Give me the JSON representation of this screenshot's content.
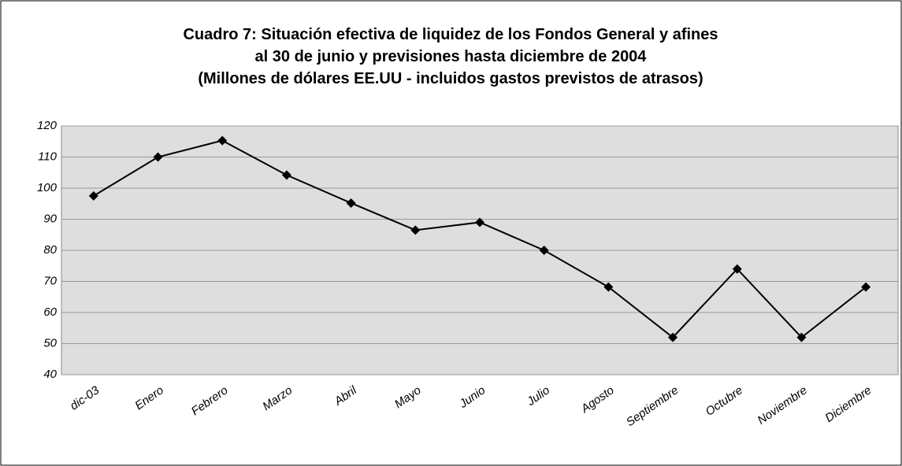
{
  "chart_data": {
    "type": "line",
    "title": [
      "Cuadro 7: Situación efectiva de liquidez de los Fondos General y afines",
      "al 30 de junio y previsiones hasta diciembre de 2004",
      "(Millones de dólares EE.UU - incluidos gastos previstos de atrasos)"
    ],
    "categories": [
      "dic-03",
      "Enero",
      "Febrero",
      "Marzo",
      "Abril",
      "Mayo",
      "Junio",
      "Julio",
      "Agosto",
      "Septiembre",
      "Octubre",
      "Noviembre",
      "Diciembre"
    ],
    "values": [
      97.5,
      110,
      115.3,
      104.2,
      95.2,
      86.5,
      89,
      80,
      68.2,
      52,
      74,
      52,
      68.2
    ],
    "color": "#000000",
    "ylim": [
      40,
      120
    ],
    "yticks": [
      40,
      50,
      60,
      70,
      80,
      90,
      100,
      110,
      120
    ],
    "grid": true
  }
}
